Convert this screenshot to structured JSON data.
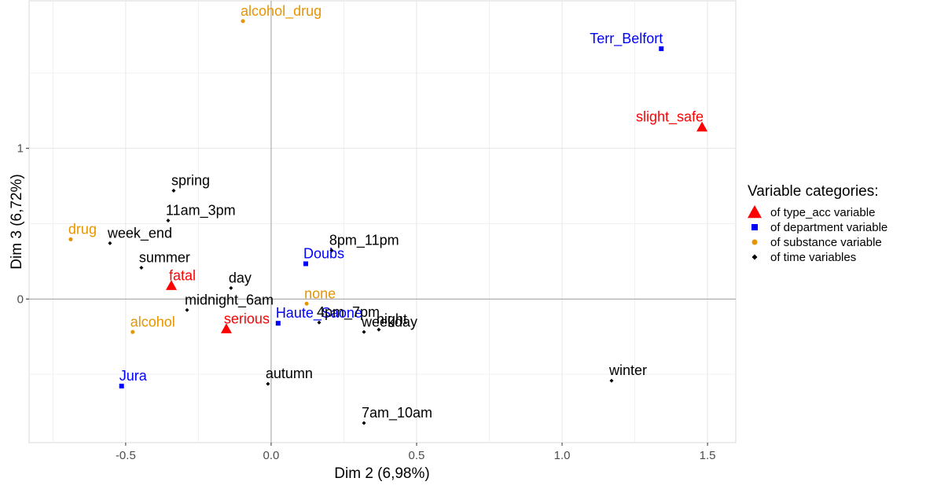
{
  "chart_data": {
    "type": "scatter",
    "x_label": "Dim 2 (6,98%)",
    "y_label": "Dim 3 (6,72%)",
    "xlim": [
      -0.832,
      1.597
    ],
    "ylim": [
      -0.953,
      1.979
    ],
    "xticks": [
      -0.5,
      {
        "value": 0,
        "label": "0.0"
      },
      0.5,
      {
        "value": 1,
        "label": "1.0"
      },
      1.5
    ],
    "yticks": [
      0,
      1
    ],
    "grid": true,
    "legend_title": "Variable categories:",
    "legend_position": "right",
    "series": [
      {
        "name": "of type_acc variable",
        "color": "#ff0000",
        "marker": "triangle",
        "labels": [
          "slight_safe",
          "fatal",
          "serious"
        ],
        "x": [
          1.481,
          -0.343,
          -0.154
        ],
        "y": [
          1.141,
          0.089,
          -0.198
        ]
      },
      {
        "name": "of department variable",
        "color": "#0000ff",
        "marker": "square",
        "labels": [
          "Terr_Belfort",
          "Doubs",
          "Haute_Saone",
          "Jura"
        ],
        "x": [
          1.341,
          0.119,
          0.024,
          -0.514
        ],
        "y": [
          1.661,
          0.234,
          -0.161,
          -0.578
        ]
      },
      {
        "name": "of substance variable",
        "color": "#e69500",
        "marker": "circle",
        "labels": [
          "alcohol_drug",
          "drug",
          "none",
          "alcohol"
        ],
        "x": [
          -0.097,
          -0.689,
          0.122,
          -0.476
        ],
        "y": [
          1.844,
          0.396,
          -0.031,
          -0.219
        ]
      },
      {
        "name": "of time variables",
        "color": "#000000",
        "marker": "diamond",
        "labels": [
          "spring",
          "11am_3pm",
          "week_end",
          "8pm_11pm",
          "summer",
          "day",
          "midnight_6am",
          "4pm_7pm",
          "night",
          "weekday",
          "winter",
          "autumn",
          "7am_10am"
        ],
        "x": [
          -0.335,
          -0.354,
          -0.554,
          0.208,
          -0.446,
          -0.138,
          -0.289,
          0.165,
          0.37,
          0.319,
          1.17,
          -0.011,
          0.319
        ],
        "y": [
          0.719,
          0.521,
          0.37,
          0.323,
          0.208,
          0.073,
          -0.073,
          -0.156,
          -0.203,
          -0.219,
          -0.542,
          -0.563,
          -0.823
        ]
      }
    ]
  }
}
